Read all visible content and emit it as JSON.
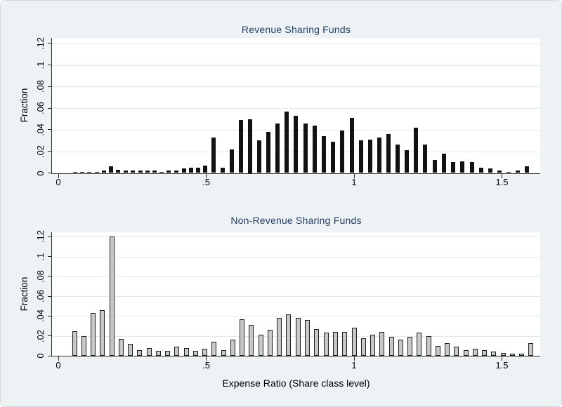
{
  "colors": {
    "background": "#edf3f4",
    "plot_background": "#ffffff",
    "gridline": "#dfeaec",
    "axis": "#2b2b2b",
    "title_text": "#254067",
    "tick_text": "#000000",
    "revenue_bar_fill": "#121212",
    "non_revenue_bar_fill": "#c8c8c8",
    "non_revenue_bar_border": "#1f1f1f"
  },
  "x_axis": {
    "title": "Expense Ratio (Share class level)",
    "ticks": [
      {
        "value": 0,
        "label": "0"
      },
      {
        "value": 0.5,
        "label": ".5"
      },
      {
        "value": 1,
        "label": "1"
      },
      {
        "value": 1.5,
        "label": "1.5"
      }
    ]
  },
  "y_axis": {
    "title": "Fraction",
    "ticks": [
      {
        "value": 0,
        "label": "0"
      },
      {
        "value": 0.02,
        "label": ".02"
      },
      {
        "value": 0.04,
        "label": ".04"
      },
      {
        "value": 0.06,
        "label": ".06"
      },
      {
        "value": 0.08,
        "label": ".08"
      },
      {
        "value": 0.1,
        "label": ".1"
      },
      {
        "value": 0.12,
        "label": ".12"
      }
    ]
  },
  "chart_data": [
    {
      "type": "bar",
      "title": "Revenue Sharing Funds",
      "xlabel": "",
      "ylabel": "Fraction",
      "xlim": [
        0,
        1.63
      ],
      "ylim": [
        0,
        0.125
      ],
      "grid": true,
      "legend": "none",
      "bar_style": "solid-black",
      "bars": [
        [
          0.056,
          0.001
        ],
        [
          0.081,
          0.001
        ],
        [
          0.105,
          0.001
        ],
        [
          0.13,
          0.001
        ],
        [
          0.154,
          0.002
        ],
        [
          0.179,
          0.006
        ],
        [
          0.203,
          0.003
        ],
        [
          0.228,
          0.002
        ],
        [
          0.252,
          0.002
        ],
        [
          0.277,
          0.002
        ],
        [
          0.301,
          0.002
        ],
        [
          0.326,
          0.002
        ],
        [
          0.35,
          0.001
        ],
        [
          0.374,
          0.002
        ],
        [
          0.399,
          0.002
        ],
        [
          0.424,
          0.004
        ],
        [
          0.448,
          0.005
        ],
        [
          0.472,
          0.005
        ],
        [
          0.497,
          0.007
        ],
        [
          0.524,
          0.033
        ],
        [
          0.555,
          0.005
        ],
        [
          0.586,
          0.022
        ],
        [
          0.617,
          0.049
        ],
        [
          0.648,
          0.05
        ],
        [
          0.68,
          0.03
        ],
        [
          0.711,
          0.038
        ],
        [
          0.742,
          0.046
        ],
        [
          0.773,
          0.057
        ],
        [
          0.804,
          0.053
        ],
        [
          0.836,
          0.046
        ],
        [
          0.867,
          0.044
        ],
        [
          0.898,
          0.034
        ],
        [
          0.929,
          0.029
        ],
        [
          0.96,
          0.039
        ],
        [
          0.992,
          0.051
        ],
        [
          1.023,
          0.03
        ],
        [
          1.054,
          0.031
        ],
        [
          1.085,
          0.033
        ],
        [
          1.117,
          0.036
        ],
        [
          1.148,
          0.026
        ],
        [
          1.179,
          0.021
        ],
        [
          1.21,
          0.042
        ],
        [
          1.241,
          0.026
        ],
        [
          1.273,
          0.012
        ],
        [
          1.304,
          0.018
        ],
        [
          1.335,
          0.01
        ],
        [
          1.366,
          0.011
        ],
        [
          1.398,
          0.01
        ],
        [
          1.429,
          0.005
        ],
        [
          1.46,
          0.004
        ],
        [
          1.491,
          0.002
        ],
        [
          1.523,
          0.001
        ],
        [
          1.554,
          0.002
        ],
        [
          1.585,
          0.006
        ]
      ]
    },
    {
      "type": "bar",
      "title": "Non-Revenue Sharing Funds",
      "xlabel": "Expense Ratio (Share class level)",
      "ylabel": "Fraction",
      "xlim": [
        0,
        1.63
      ],
      "ylim": [
        0,
        0.125
      ],
      "grid": true,
      "legend": "none",
      "bar_style": "gray-outlined",
      "bars": [
        [
          0.055,
          0.025
        ],
        [
          0.086,
          0.02
        ],
        [
          0.118,
          0.043
        ],
        [
          0.149,
          0.046
        ],
        [
          0.181,
          0.12
        ],
        [
          0.212,
          0.017
        ],
        [
          0.244,
          0.012
        ],
        [
          0.275,
          0.006
        ],
        [
          0.307,
          0.008
        ],
        [
          0.338,
          0.005
        ],
        [
          0.37,
          0.005
        ],
        [
          0.401,
          0.009
        ],
        [
          0.433,
          0.008
        ],
        [
          0.464,
          0.005
        ],
        [
          0.496,
          0.007
        ],
        [
          0.527,
          0.014
        ],
        [
          0.559,
          0.006
        ],
        [
          0.59,
          0.016
        ],
        [
          0.622,
          0.037
        ],
        [
          0.653,
          0.031
        ],
        [
          0.685,
          0.021
        ],
        [
          0.716,
          0.026
        ],
        [
          0.748,
          0.038
        ],
        [
          0.779,
          0.042
        ],
        [
          0.811,
          0.038
        ],
        [
          0.842,
          0.036
        ],
        [
          0.874,
          0.027
        ],
        [
          0.905,
          0.023
        ],
        [
          0.937,
          0.024
        ],
        [
          0.968,
          0.024
        ],
        [
          1.0,
          0.028
        ],
        [
          1.031,
          0.018
        ],
        [
          1.063,
          0.021
        ],
        [
          1.094,
          0.024
        ],
        [
          1.126,
          0.019
        ],
        [
          1.157,
          0.016
        ],
        [
          1.189,
          0.019
        ],
        [
          1.22,
          0.023
        ],
        [
          1.252,
          0.02
        ],
        [
          1.283,
          0.01
        ],
        [
          1.315,
          0.013
        ],
        [
          1.346,
          0.009
        ],
        [
          1.378,
          0.006
        ],
        [
          1.409,
          0.007
        ],
        [
          1.441,
          0.006
        ],
        [
          1.472,
          0.004
        ],
        [
          1.504,
          0.003
        ],
        [
          1.535,
          0.002
        ],
        [
          1.567,
          0.002
        ],
        [
          1.598,
          0.013
        ]
      ]
    }
  ]
}
